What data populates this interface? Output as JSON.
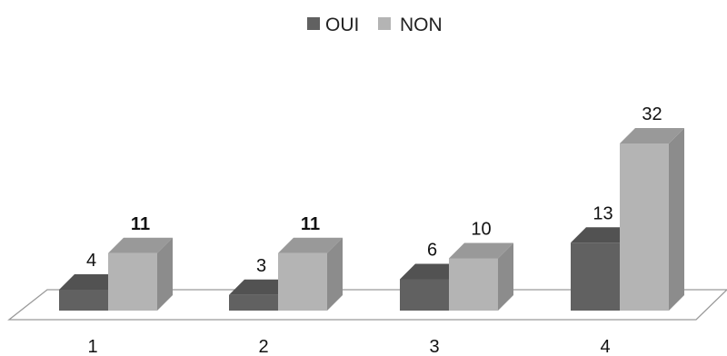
{
  "chart_data": {
    "type": "bar",
    "style": "3d-clustered-column",
    "categories": [
      "1",
      "2",
      "3",
      "4"
    ],
    "series": [
      {
        "name": "OUI",
        "values": [
          4,
          3,
          6,
          13
        ],
        "color": "#616161"
      },
      {
        "name": "NON",
        "values": [
          11,
          11,
          10,
          32
        ],
        "color": "#b4b4b4"
      }
    ],
    "data_labels": [
      [
        "4",
        "3",
        "6",
        "13"
      ],
      [
        "11",
        "11",
        "10",
        "32"
      ]
    ],
    "bold_labels": [
      [
        false,
        false,
        false,
        false
      ],
      [
        true,
        true,
        false,
        false
      ]
    ],
    "legend_position": "top",
    "grid": false,
    "xlabel": "",
    "ylabel": ""
  }
}
